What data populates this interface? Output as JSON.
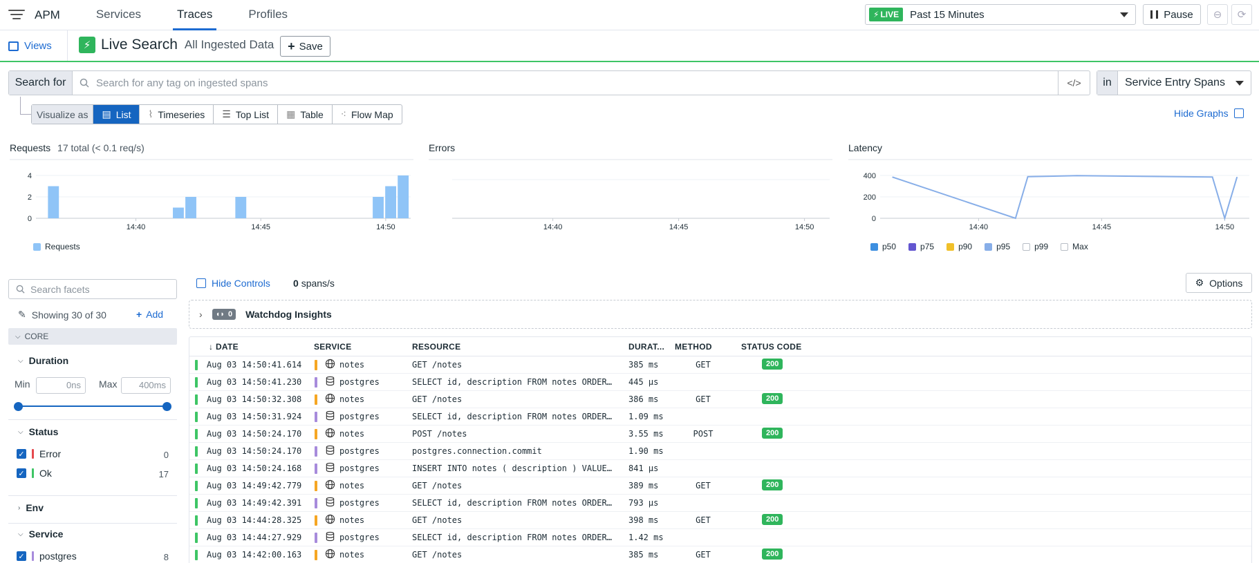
{
  "nav": {
    "brand": "APM",
    "tabs": [
      {
        "label": "Services"
      },
      {
        "label": "Traces"
      },
      {
        "label": "Profiles"
      }
    ],
    "live_badge": "LIVE",
    "time_range": "Past 15 Minutes",
    "pause_label": "Pause"
  },
  "header": {
    "views_label": "Views",
    "title": "Live Search",
    "subtitle": "All Ingested Data",
    "save_label": "Save"
  },
  "search": {
    "label": "Search for",
    "placeholder": "Search for any tag on ingested spans",
    "in_label": "in",
    "scope": "Service Entry Spans"
  },
  "visualize": {
    "label": "Visualize as",
    "options": [
      "List",
      "Timeseries",
      "Top List",
      "Table",
      "Flow Map"
    ],
    "selected": "List",
    "hide_graphs": "Hide Graphs"
  },
  "charts": {
    "requests": {
      "title": "Requests",
      "subtitle": "17 total (< 0.1 req/s)",
      "legend": [
        "Requests"
      ]
    },
    "errors": {
      "title": "Errors"
    },
    "latency": {
      "title": "Latency",
      "legend": [
        "p50",
        "p75",
        "p90",
        "p95",
        "p99",
        "Max"
      ]
    }
  },
  "chart_data": [
    {
      "type": "bar",
      "title": "Requests",
      "x_ticks": [
        "14:40",
        "14:45",
        "14:50"
      ],
      "y_ticks": [
        0,
        2,
        4
      ],
      "ylim": [
        0,
        4
      ],
      "x_range_min": [
        36.0,
        51.0
      ],
      "series": [
        {
          "name": "Requests",
          "color": "#8fc4f7",
          "points": [
            {
              "t": 36.7,
              "v": 3
            },
            {
              "t": 41.7,
              "v": 1
            },
            {
              "t": 42.2,
              "v": 2
            },
            {
              "t": 44.2,
              "v": 2
            },
            {
              "t": 49.7,
              "v": 2
            },
            {
              "t": 50.2,
              "v": 3
            },
            {
              "t": 50.7,
              "v": 4
            }
          ]
        }
      ]
    },
    {
      "type": "line",
      "title": "Errors",
      "x_ticks": [
        "14:40",
        "14:45",
        "14:50"
      ],
      "x_range_min": [
        36.0,
        51.0
      ],
      "series": []
    },
    {
      "type": "line",
      "title": "Latency",
      "x_ticks": [
        "14:40",
        "14:45",
        "14:50"
      ],
      "y_ticks": [
        0,
        200,
        400
      ],
      "ylim": [
        0,
        400
      ],
      "x_range_min": [
        36.0,
        51.0
      ],
      "series": [
        {
          "name": "p95",
          "color": "#87aee8",
          "points": [
            {
              "t": 36.5,
              "v": 385
            },
            {
              "t": 41.5,
              "v": 0
            },
            {
              "t": 42.0,
              "v": 389
            },
            {
              "t": 44.0,
              "v": 398
            },
            {
              "t": 49.5,
              "v": 386
            },
            {
              "t": 50.0,
              "v": 0
            },
            {
              "t": 50.5,
              "v": 385
            }
          ]
        }
      ],
      "legend_colors": {
        "p50": "#3d8fe0",
        "p75": "#6356d0",
        "p90": "#f0c02a",
        "p95": "#87aee8",
        "p99": "#ffffff",
        "Max": "#ffffff"
      }
    }
  ],
  "facets": {
    "search_placeholder": "Search facets",
    "showing": "Showing 30 of 30",
    "add_label": "Add",
    "core_label": "CORE",
    "duration": {
      "title": "Duration",
      "min_label": "Min",
      "min_value": "0ns",
      "max_label": "Max",
      "max_value": "400ms"
    },
    "status": {
      "title": "Status",
      "items": [
        {
          "label": "Error",
          "count": "0",
          "color": "#e5484d"
        },
        {
          "label": "Ok",
          "count": "17",
          "color": "#3ec565"
        }
      ]
    },
    "env": {
      "title": "Env"
    },
    "service": {
      "title": "Service",
      "items": [
        {
          "label": "postgres",
          "count": "8",
          "color": "#a78bdc"
        }
      ]
    }
  },
  "list": {
    "hide_controls": "Hide Controls",
    "spans_rate": "0",
    "spans_unit": "spans/s",
    "options_label": "Options",
    "watchdog_count": "0",
    "watchdog_title": "Watchdog Insights",
    "columns": [
      "DATE",
      "SERVICE",
      "RESOURCE",
      "DURAT...",
      "METHOD",
      "STATUS CODE"
    ],
    "rows": [
      {
        "date": "Aug 03 14:50:41.614",
        "service": "notes",
        "type": "web",
        "resource": "GET /notes",
        "duration": "385 ms",
        "method": "GET",
        "status": "200"
      },
      {
        "date": "Aug 03 14:50:41.230",
        "service": "postgres",
        "type": "db",
        "resource": "SELECT id, description FROM notes ORDER…",
        "duration": "445 μs",
        "method": "",
        "status": ""
      },
      {
        "date": "Aug 03 14:50:32.308",
        "service": "notes",
        "type": "web",
        "resource": "GET /notes",
        "duration": "386 ms",
        "method": "GET",
        "status": "200"
      },
      {
        "date": "Aug 03 14:50:31.924",
        "service": "postgres",
        "type": "db",
        "resource": "SELECT id, description FROM notes ORDER…",
        "duration": "1.09 ms",
        "method": "",
        "status": ""
      },
      {
        "date": "Aug 03 14:50:24.170",
        "service": "notes",
        "type": "web",
        "resource": "POST /notes",
        "duration": "3.55 ms",
        "method": "POST",
        "status": "200"
      },
      {
        "date": "Aug 03 14:50:24.170",
        "service": "postgres",
        "type": "db",
        "resource": "postgres.connection.commit",
        "duration": "1.90 ms",
        "method": "",
        "status": ""
      },
      {
        "date": "Aug 03 14:50:24.168",
        "service": "postgres",
        "type": "db",
        "resource": "INSERT INTO notes ( description ) VALUE…",
        "duration": "841 μs",
        "method": "",
        "status": ""
      },
      {
        "date": "Aug 03 14:49:42.779",
        "service": "notes",
        "type": "web",
        "resource": "GET /notes",
        "duration": "389 ms",
        "method": "GET",
        "status": "200"
      },
      {
        "date": "Aug 03 14:49:42.391",
        "service": "postgres",
        "type": "db",
        "resource": "SELECT id, description FROM notes ORDER…",
        "duration": "793 μs",
        "method": "",
        "status": ""
      },
      {
        "date": "Aug 03 14:44:28.325",
        "service": "notes",
        "type": "web",
        "resource": "GET /notes",
        "duration": "398 ms",
        "method": "GET",
        "status": "200"
      },
      {
        "date": "Aug 03 14:44:27.929",
        "service": "postgres",
        "type": "db",
        "resource": "SELECT id, description FROM notes ORDER…",
        "duration": "1.42 ms",
        "method": "",
        "status": ""
      },
      {
        "date": "Aug 03 14:42:00.163",
        "service": "notes",
        "type": "web",
        "resource": "GET /notes",
        "duration": "385 ms",
        "method": "GET",
        "status": "200"
      }
    ]
  },
  "colors": {
    "accent": "#1d6bd1",
    "live_green": "#2fb55c",
    "service_notes": "#f5a623",
    "service_postgres": "#a78bdc"
  }
}
